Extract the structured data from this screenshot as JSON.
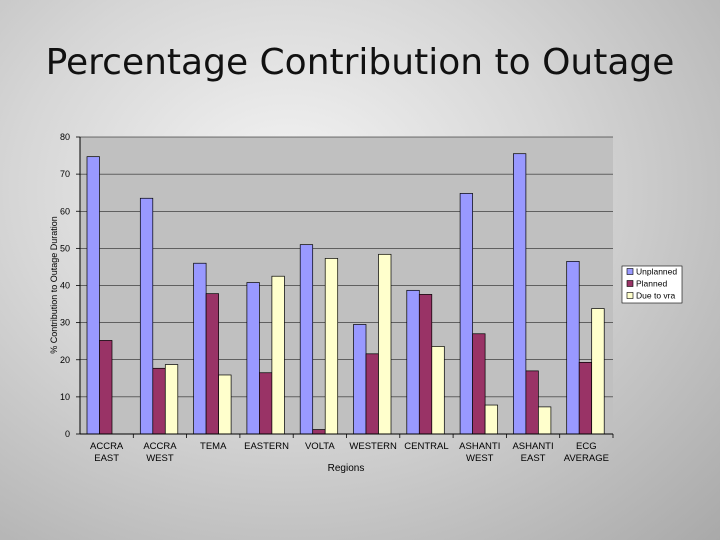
{
  "slide": {
    "title": "Percentage Contribution to Outage"
  },
  "chart_data": {
    "type": "bar",
    "title": "",
    "xlabel": "Regions",
    "ylabel": "% Contribution to Outage Duration",
    "ylim": [
      0,
      80
    ],
    "yticks": [
      0,
      10,
      20,
      30,
      40,
      50,
      60,
      70,
      80
    ],
    "grid": true,
    "legend_position": "right",
    "categories": [
      [
        "ACCRA",
        "EAST"
      ],
      [
        "ACCRA",
        "WEST"
      ],
      [
        "TEMA"
      ],
      [
        "EASTERN"
      ],
      [
        "VOLTA"
      ],
      [
        "WESTERN"
      ],
      [
        "CENTRAL"
      ],
      [
        "ASHANTI",
        "WEST"
      ],
      [
        "ASHANTI",
        "EAST"
      ],
      [
        "ECG",
        "AVERAGE"
      ]
    ],
    "series": [
      {
        "name": "Unplanned",
        "color": "#9999ff",
        "values": [
          74.7,
          63.5,
          46,
          40.8,
          51,
          29.5,
          38.7,
          64.8,
          75.5,
          46.5
        ]
      },
      {
        "name": "Planned",
        "color": "#993366",
        "values": [
          25.2,
          17.7,
          37.8,
          16.5,
          1.2,
          21.6,
          37.6,
          27,
          17,
          19.3
        ]
      },
      {
        "name": "Due to vra",
        "color": "#ffffcc",
        "values": [
          0,
          18.7,
          15.9,
          42.5,
          47.3,
          48.4,
          23.6,
          7.8,
          7.3,
          33.8
        ]
      }
    ]
  }
}
